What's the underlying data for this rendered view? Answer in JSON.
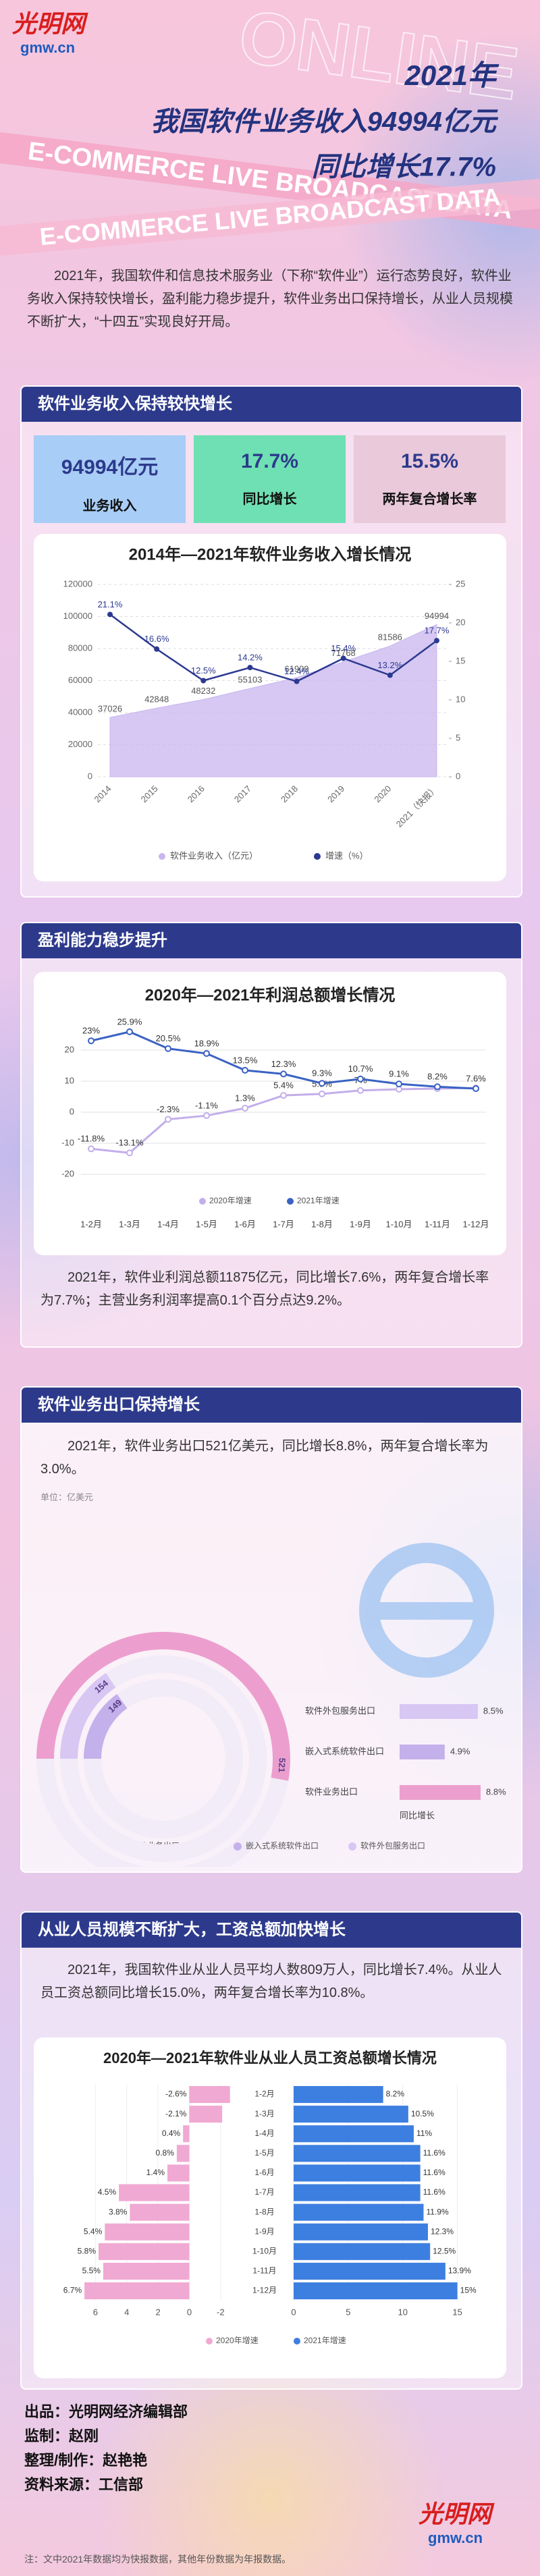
{
  "logo": {
    "name": "光明网",
    "domain": "gmw.cn"
  },
  "decor": [
    "ONLINE",
    "E-COMMERCE LIVE BROADCAST DATA"
  ],
  "header": {
    "year": "2021年",
    "line1": "我国软件业务收入94994亿元",
    "line2": "同比增长17.7%"
  },
  "intro": "2021年，我国软件和信息技术服务业（下称“软件业”）运行态势良好，软件业务收入保持较快增长，盈利能力稳步提升，软件业务出口保持增长，从业人员规模不断扩大，“十四五”实现良好开局。",
  "sections": [
    {
      "title": "软件业务收入保持较快增长",
      "stats": [
        {
          "value": "94994亿元",
          "label": "业务收入"
        },
        {
          "value": "17.7%",
          "label": "同比增长"
        },
        {
          "value": "15.5%",
          "label": "两年复合增长率"
        }
      ]
    },
    {
      "title": "盈利能力稳步提升",
      "text": "2021年，软件业利润总额11875亿元，同比增长7.6%，两年复合增长率为7.7%；主营业务利润率提高0.1个百分点达9.2%。"
    },
    {
      "title": "软件业务出口保持增长",
      "text": "2021年，软件业务出口521亿美元，同比增长8.8%，两年复合增长率为3.0%。"
    },
    {
      "title": "从业人员规模不断扩大，工资总额加快增长",
      "text": "2021年，我国软件业从业人员平均人数809万人，同比增长7.4%。从业人员工资总额同比增长15.0%，两年复合增长率为10.8%。"
    }
  ],
  "chart_data": [
    {
      "type": "combo",
      "title": "2014年—2021年软件业务收入增长情况",
      "categories": [
        "2014",
        "2015",
        "2016",
        "2017",
        "2018",
        "2019",
        "2020",
        "2021（快报）"
      ],
      "series": [
        {
          "name": "软件业务收入（亿元）",
          "kind": "area",
          "color": "#c8b6ef",
          "values": [
            37026,
            42848,
            48232,
            55103,
            61909,
            71768,
            81586,
            94994
          ]
        },
        {
          "name": "增速（%）",
          "kind": "line",
          "axis": "y2",
          "color": "#2b3990",
          "values": [
            21.1,
            16.6,
            12.5,
            14.2,
            12.4,
            15.4,
            13.2,
            17.7
          ],
          "value_labels": [
            "21.1%",
            "16.6%",
            "12.5%",
            "14.2%",
            "12.4%",
            "15.4%",
            "13.2%",
            "17.7%"
          ]
        }
      ],
      "ylim": [
        0,
        120000
      ],
      "yticks": [
        0,
        20000,
        40000,
        60000,
        80000,
        100000,
        120000
      ],
      "y2lim": [
        0,
        25
      ],
      "y2ticks": [
        0,
        5,
        10,
        15,
        20,
        25
      ],
      "grid": true
    },
    {
      "type": "line",
      "title": "2020年—2021年利润总额增长情况",
      "categories": [
        "1-2月",
        "1-3月",
        "1-4月",
        "1-5月",
        "1-6月",
        "1-7月",
        "1-8月",
        "1-9月",
        "1-10月",
        "1-11月",
        "1-12月"
      ],
      "series": [
        {
          "name": "2020年增速",
          "color": "#c3aeea",
          "values": [
            -11.8,
            -13.1,
            -2.3,
            -1.1,
            1.3,
            5.4,
            5.9,
            7,
            7.4,
            7.6,
            7.8
          ],
          "value_labels": [
            "-11.8%",
            "-13.1%",
            "-2.3%",
            "-1.1%",
            "1.3%",
            "5.4%",
            "5.9%",
            "7%",
            null,
            null,
            null
          ]
        },
        {
          "name": "2021年增速",
          "color": "#3a62c4",
          "values": [
            23,
            25.9,
            20.5,
            18.9,
            13.5,
            12.3,
            9.3,
            10.7,
            9.1,
            8.2,
            7.6
          ],
          "value_labels": [
            "23%",
            "25.9%",
            "20.5%",
            "18.9%",
            "13.5%",
            "12.3%",
            "9.3%",
            "10.7%",
            "9.1%",
            "8.2%",
            "7.6%"
          ]
        }
      ],
      "ylim": [
        -20,
        30
      ],
      "yticks": [
        -20,
        -10,
        0,
        10,
        20
      ],
      "grid": true
    },
    {
      "type": "radial",
      "unit": "单位：亿美元",
      "categories": [
        "软件业务出口",
        "嵌入式系统软件出口",
        "软件外包服务出口"
      ],
      "colors": [
        "#ec9fce",
        "#c4b0ea",
        "#d8c6f3"
      ],
      "values": [
        521,
        149,
        154
      ],
      "growth": {
        "name": "同比增长",
        "values": [
          8.8,
          4.9,
          8.5
        ],
        "value_labels": [
          "8.8%",
          "4.9%",
          "8.5%"
        ]
      }
    },
    {
      "type": "butterfly",
      "title": "2020年—2021年软件业从业人员工资总额增长情况",
      "categories": [
        "1-2月",
        "1-3月",
        "1-4月",
        "1-5月",
        "1-6月",
        "1-7月",
        "1-8月",
        "1-9月",
        "1-10月",
        "1-11月",
        "1-12月"
      ],
      "series": [
        {
          "name": "2020年增速",
          "color": "#f0a9d2",
          "values": [
            -2.6,
            -2.1,
            0.4,
            0.8,
            1.4,
            4.5,
            3.8,
            5.4,
            5.8,
            5.5,
            6.7
          ],
          "value_labels": [
            "-2.6%",
            "-2.1%",
            "0.4%",
            "0.8%",
            "1.4%",
            "4.5%",
            "3.8%",
            "5.4%",
            "5.8%",
            "5.5%",
            "6.7%"
          ],
          "xlim": [
            8,
            -3
          ],
          "xticks": [
            6,
            4,
            2,
            0,
            -2
          ]
        },
        {
          "name": "2021年增速",
          "color": "#3d7fe0",
          "values": [
            8.2,
            10.5,
            11,
            11.6,
            11.6,
            11.6,
            11.9,
            12.3,
            12.5,
            13.9,
            15
          ],
          "value_labels": [
            "8.2%",
            "10.5%",
            "11%",
            "11.6%",
            "11.6%",
            "11.6%",
            "11.9%",
            "12.3%",
            "12.5%",
            "13.9%",
            "15%"
          ],
          "xlim": [
            0,
            17
          ],
          "xticks": [
            0,
            5,
            10,
            15
          ]
        }
      ]
    }
  ],
  "footer": {
    "lines": [
      "出品：光明网经济编辑部",
      "监制：赵刚",
      "整理/制作：赵艳艳",
      "资料来源：工信部"
    ],
    "note": "注：文中2021年数据均为快报数据，其他年份数据为年报数据。"
  }
}
